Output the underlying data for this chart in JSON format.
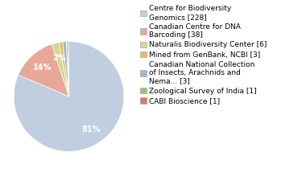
{
  "labels": [
    "Centre for Biodiversity\nGenomics [228]",
    "Canadian Centre for DNA\nBarcoding [38]",
    "Naturalis Biodiversity Center [6]",
    "Mined from GenBank, NCBI [3]",
    "Canadian National Collection\nof Insects, Arachnids and\nNema... [3]",
    "Zoological Survey of India [1]",
    "CABI Bioscience [1]"
  ],
  "values": [
    228,
    38,
    6,
    3,
    3,
    1,
    1
  ],
  "colors": [
    "#bfcfe0",
    "#e8a898",
    "#d4d890",
    "#e8b870",
    "#9ab8d8",
    "#90c870",
    "#d87868"
  ],
  "figsize": [
    3.8,
    2.4
  ],
  "dpi": 100,
  "legend_fontsize": 6.5,
  "autopct_fontsize": 7,
  "bg_color": "#ffffff"
}
